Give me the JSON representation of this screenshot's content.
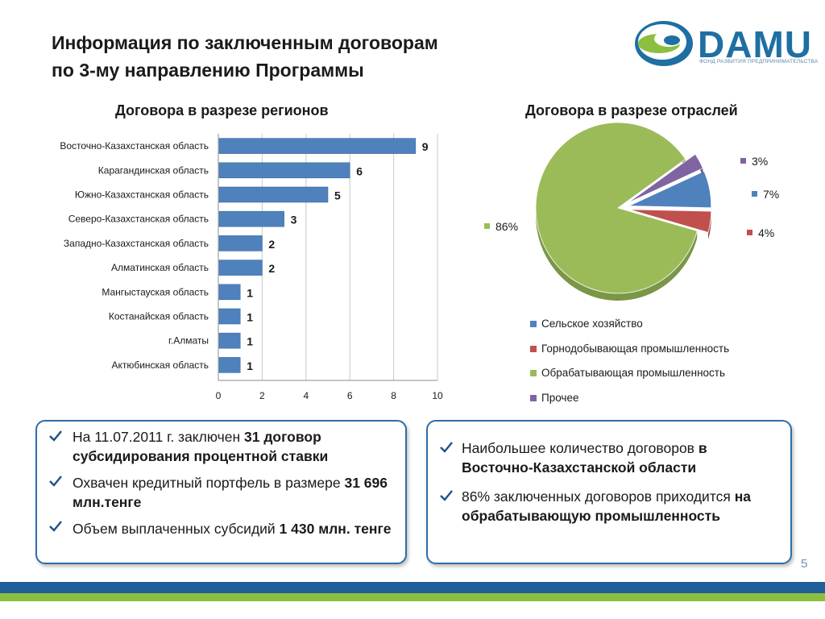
{
  "header": {
    "title_line1": "Информация по заключенным договорам",
    "title_line2": "по 3-му направлению Программы",
    "logo_text": "DAMU",
    "logo_sub": "ФОНД РАЗВИТИЯ ПРЕДПРИНИМАТЕЛЬСТВА"
  },
  "bar_section_title": "Договора в разрезе регионов",
  "pie_section_title": "Договора в разрезе отраслей",
  "colors": {
    "bar": "#4f81bd",
    "pie_blue": "#4f81bd",
    "pie_red": "#c0504d",
    "pie_green": "#9bbb59",
    "pie_purple": "#8064a2",
    "box_border": "#2e6ea6",
    "stripe_blue": "#1f5f9a",
    "stripe_green": "#8cbf3f"
  },
  "chart_data": [
    {
      "type": "bar",
      "orientation": "horizontal",
      "title": "Договора в разрезе регионов",
      "categories": [
        "Восточно-Казахстанская область",
        "Карагандинская область",
        "Южно-Казахстанская область",
        "Северо-Казахстанская область",
        "Западно-Казахстанская область",
        "Алматинская область",
        "Мангыстауская область",
        "Костанайская область",
        "г.Алматы",
        "Актюбинская область"
      ],
      "values": [
        9,
        6,
        5,
        3,
        2,
        2,
        1,
        1,
        1,
        1
      ],
      "xlim": [
        0,
        10
      ],
      "xticks": [
        "0",
        "2",
        "4",
        "6",
        "8",
        "10"
      ],
      "grid": "vertical"
    },
    {
      "type": "pie",
      "title": "Договора в разрезе отраслей",
      "series": [
        {
          "name": "Сельское хозяйство",
          "value": 7,
          "label": "7%"
        },
        {
          "name": "Горнодобывающая промышленность",
          "value": 4,
          "label": "4%"
        },
        {
          "name": "Обрабатывающая промышленность",
          "value": 86,
          "label": "86%"
        },
        {
          "name": "Прочее",
          "value": 3,
          "label": "3%"
        }
      ],
      "legend_placement": "bottom"
    }
  ],
  "left_box": {
    "b1_pre": "На 11.07.2011 г. заключен ",
    "b1_bold": "31 договор субсидирования процентной ставки",
    "b2_pre": "Охвачен кредитный портфель в размере ",
    "b2_bold": "31 696 млн.тенге",
    "b3_pre": "Объем выплаченных субсидий ",
    "b3_bold": "1 430 млн. тенге"
  },
  "right_box": {
    "b1_pre": "Наибольшее количество договоров ",
    "b1_bold": "в Восточно-Казахстанской области",
    "b2_pre": "86% заключенных договоров приходится ",
    "b2_bold": "на обрабатывающую промышленность"
  },
  "page_number": "5"
}
